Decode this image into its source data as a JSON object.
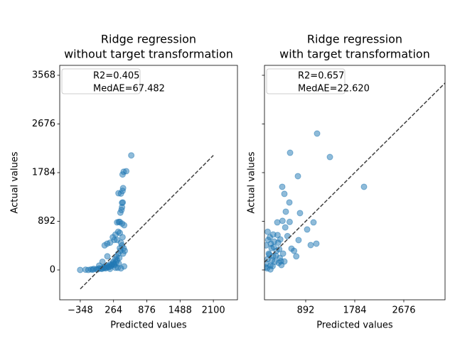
{
  "chart_data": [
    {
      "type": "scatter",
      "title": [
        "Ridge regression",
        "without target transformation"
      ],
      "x_label": "Predicted values",
      "y_label": "Actual values",
      "legend": [
        "R2=0.405",
        "MedAE=67.482"
      ],
      "color": "#1f77b4",
      "xlim": [
        -726,
        2543
      ],
      "ylim": [
        -547,
        3750
      ],
      "xticks": [
        {
          "value": -348,
          "label": "−348"
        },
        264,
        876,
        1488,
        2100
      ],
      "yticks": [
        0,
        892,
        1784,
        2676,
        3568
      ],
      "show_ytick_labels": true,
      "reference_line": {
        "x": [
          -348,
          2100
        ],
        "y": [
          -348,
          2100
        ]
      },
      "x": [
        -350,
        -250,
        -150,
        -100,
        -50,
        0,
        50,
        80,
        100,
        120,
        150,
        180,
        200,
        220,
        250,
        260,
        280,
        300,
        320,
        330,
        350,
        370,
        380,
        390,
        100,
        200,
        250,
        300,
        350,
        280,
        330,
        400,
        420,
        380,
        360,
        390,
        410,
        420,
        400,
        430,
        440,
        420,
        450,
        430,
        590,
        400,
        420,
        430,
        380,
        450,
        300,
        200,
        360,
        440,
        470,
        150,
        0,
        60,
        498,
        355,
        433,
        329,
        459,
        147,
        459,
        342,
        -200,
        -120,
        -30,
        30,
        90,
        140,
        170,
        230,
        270,
        310
      ],
      "y": [
        0,
        5,
        10,
        20,
        15,
        30,
        20,
        40,
        60,
        30,
        80,
        50,
        100,
        70,
        120,
        150,
        90,
        200,
        250,
        180,
        300,
        220,
        400,
        350,
        450,
        500,
        600,
        650,
        700,
        550,
        550,
        500,
        450,
        880,
        880,
        1050,
        1100,
        1150,
        1400,
        1450,
        1500,
        1230,
        1800,
        1750,
        2100,
        30,
        850,
        600,
        680,
        400,
        40,
        20,
        120,
        300,
        350,
        250,
        80,
        150,
        1810,
        1406,
        1237,
        872,
        820,
        482,
        65,
        39,
        0,
        5,
        10,
        25,
        35,
        45,
        60,
        90,
        110,
        140
      ]
    },
    {
      "type": "scatter",
      "title": [
        "Ridge regression",
        "with target transformation"
      ],
      "x_label": "Predicted values",
      "y_label": "Actual values",
      "legend": [
        "R2=0.657",
        "MedAE=22.620"
      ],
      "color": "#1f77b4",
      "xlim": [
        142,
        3426
      ],
      "ylim": [
        -547,
        3750
      ],
      "xticks": [
        892,
        1784,
        2676
      ],
      "yticks": [
        0,
        892,
        1784,
        2676,
        3568
      ],
      "show_ytick_labels": false,
      "reference_line": {
        "x": [
          0,
          3600
        ],
        "y": [
          0,
          3600
        ]
      },
      "x": [
        1099,
        1332,
        608,
        750,
        1952,
        465,
        504,
        595,
        530,
        788,
        1034,
        918,
        1086,
        983,
        762,
        633,
        375,
        504,
        400,
        160,
        180,
        200,
        220,
        250,
        270,
        300,
        330,
        360,
        390,
        420,
        450,
        480,
        170,
        210,
        240,
        280,
        310,
        350,
        380,
        410,
        440,
        190,
        230,
        260,
        290,
        320,
        560,
        680,
        520,
        600,
        720,
        470,
        430,
        300,
        250,
        200
      ],
      "y": [
        2500,
        2070,
        2148,
        1719,
        1524,
        1524,
        1394,
        1237,
        1068,
        1042,
        872,
        742,
        482,
        456,
        547,
        391,
        872,
        156,
        130,
        50,
        120,
        200,
        300,
        80,
        400,
        250,
        150,
        350,
        500,
        220,
        90,
        300,
        450,
        550,
        600,
        180,
        420,
        260,
        640,
        380,
        160,
        30,
        280,
        480,
        70,
        520,
        620,
        350,
        780,
        880,
        250,
        900,
        560,
        650,
        10,
        700
      ]
    }
  ]
}
